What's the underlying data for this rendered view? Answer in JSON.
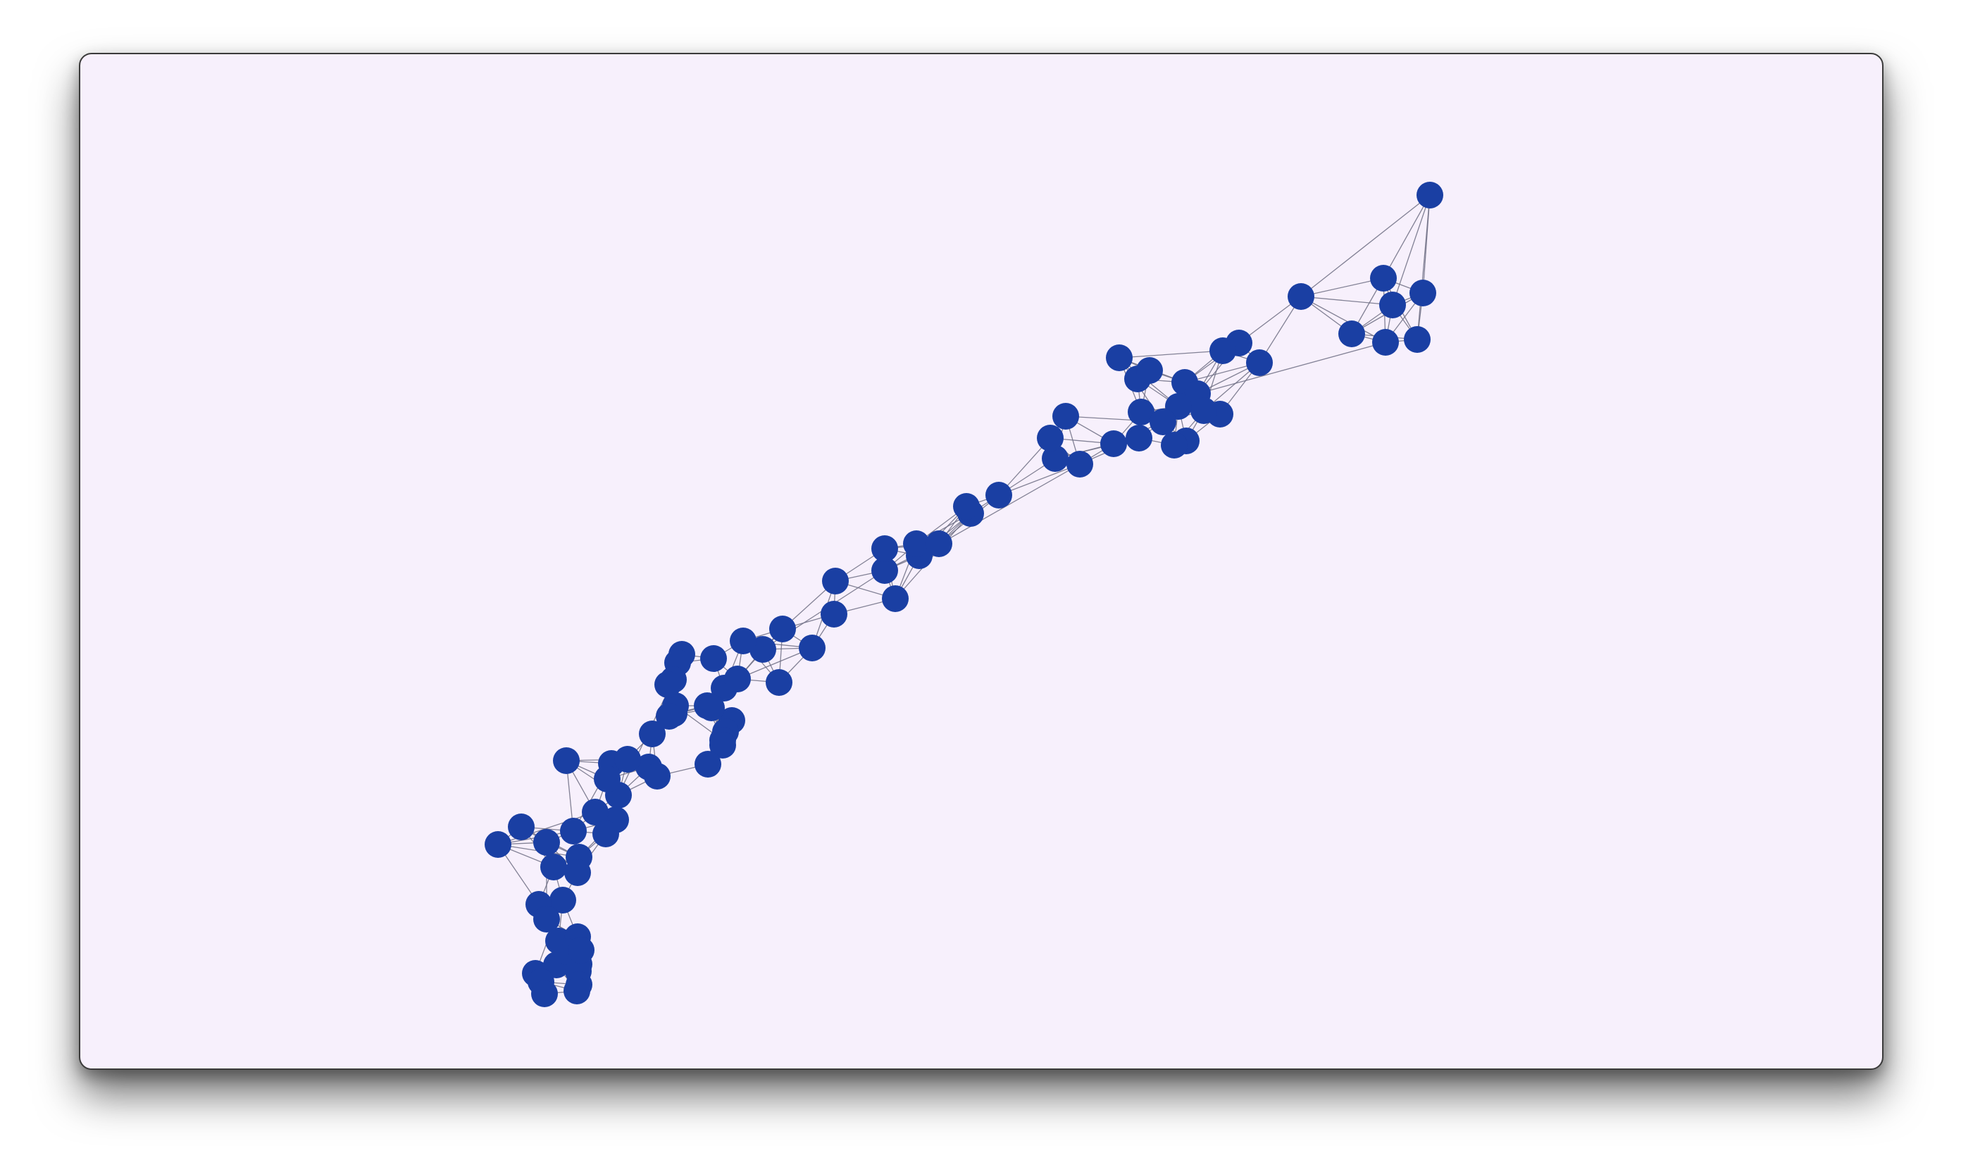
{
  "graph": {
    "node_color": "#1a3fa3",
    "edge_color": "#6d6d82",
    "background_color": "#f7f0fc",
    "node_count": 104
  }
}
